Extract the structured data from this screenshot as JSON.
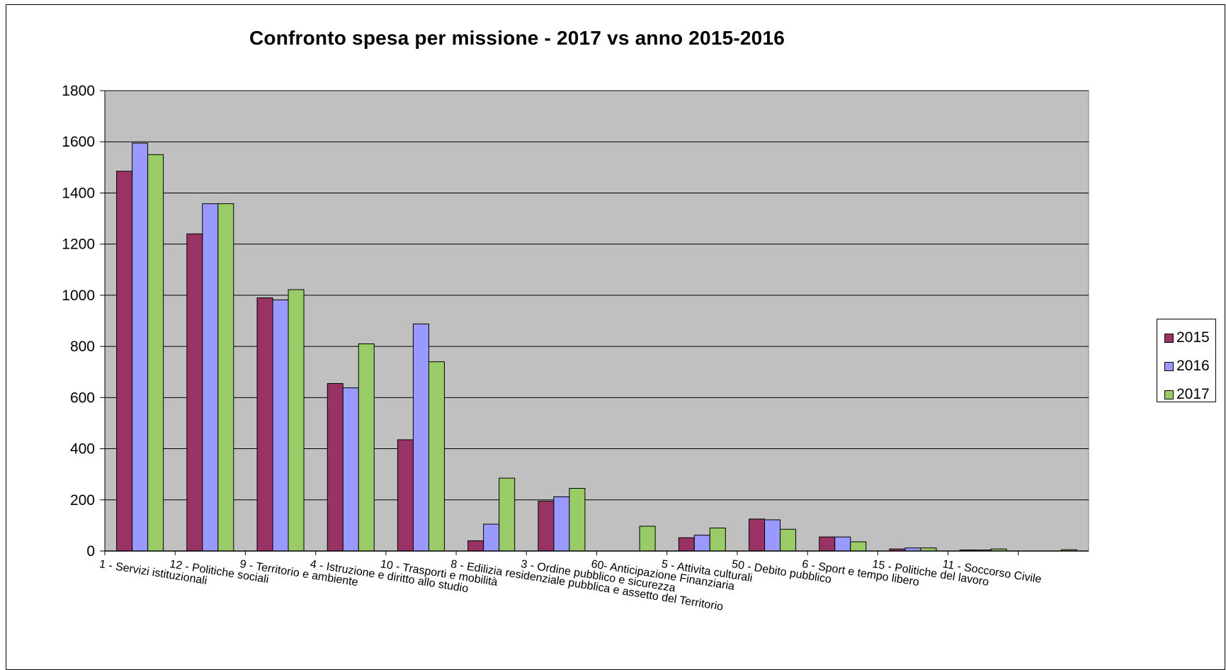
{
  "chart_data": {
    "type": "bar",
    "title": "Confronto spesa per missione  - 2017 vs anno 2015-2016",
    "xlabel": "",
    "ylabel": "",
    "ylim": [
      0,
      1800
    ],
    "yticks": [
      "0",
      "200",
      "400",
      "600",
      "800",
      "1000",
      "1200",
      "1400",
      "1600",
      "1800"
    ],
    "grid": true,
    "legend_position": "right",
    "plot_background": "#c0c0c0",
    "categories": [
      "1 - Servizi istituzionali",
      "12 - Politiche sociali",
      "9 - Territorio e ambiente",
      "4 - Istruzione e diritto allo studio",
      "10 - Trasporti e mobilità",
      "8 - Edilizia residenziale pubblica e assetto del Territorio",
      "3 - Ordine pubblico e sicurezza",
      "60- Anticipazione Finanziaria",
      "5 - Attivita culturali",
      "50 - Debito pubblico",
      "6 - Sport e tempo libero",
      "15 - Politiche del lavoro",
      "11 - Soccorso Civile",
      ""
    ],
    "series": [
      {
        "name": "2015",
        "color": "#993366",
        "values": [
          1485,
          1240,
          990,
          655,
          435,
          40,
          195,
          0,
          52,
          125,
          55,
          8,
          4,
          0
        ]
      },
      {
        "name": "2016",
        "color": "#9999ff",
        "values": [
          1595,
          1358,
          982,
          638,
          888,
          105,
          212,
          0,
          62,
          122,
          55,
          12,
          4,
          0
        ]
      },
      {
        "name": "2017",
        "color": "#99cc66",
        "values": [
          1550,
          1358,
          1022,
          810,
          740,
          285,
          245,
          97,
          90,
          85,
          36,
          12,
          8,
          5
        ]
      }
    ]
  }
}
